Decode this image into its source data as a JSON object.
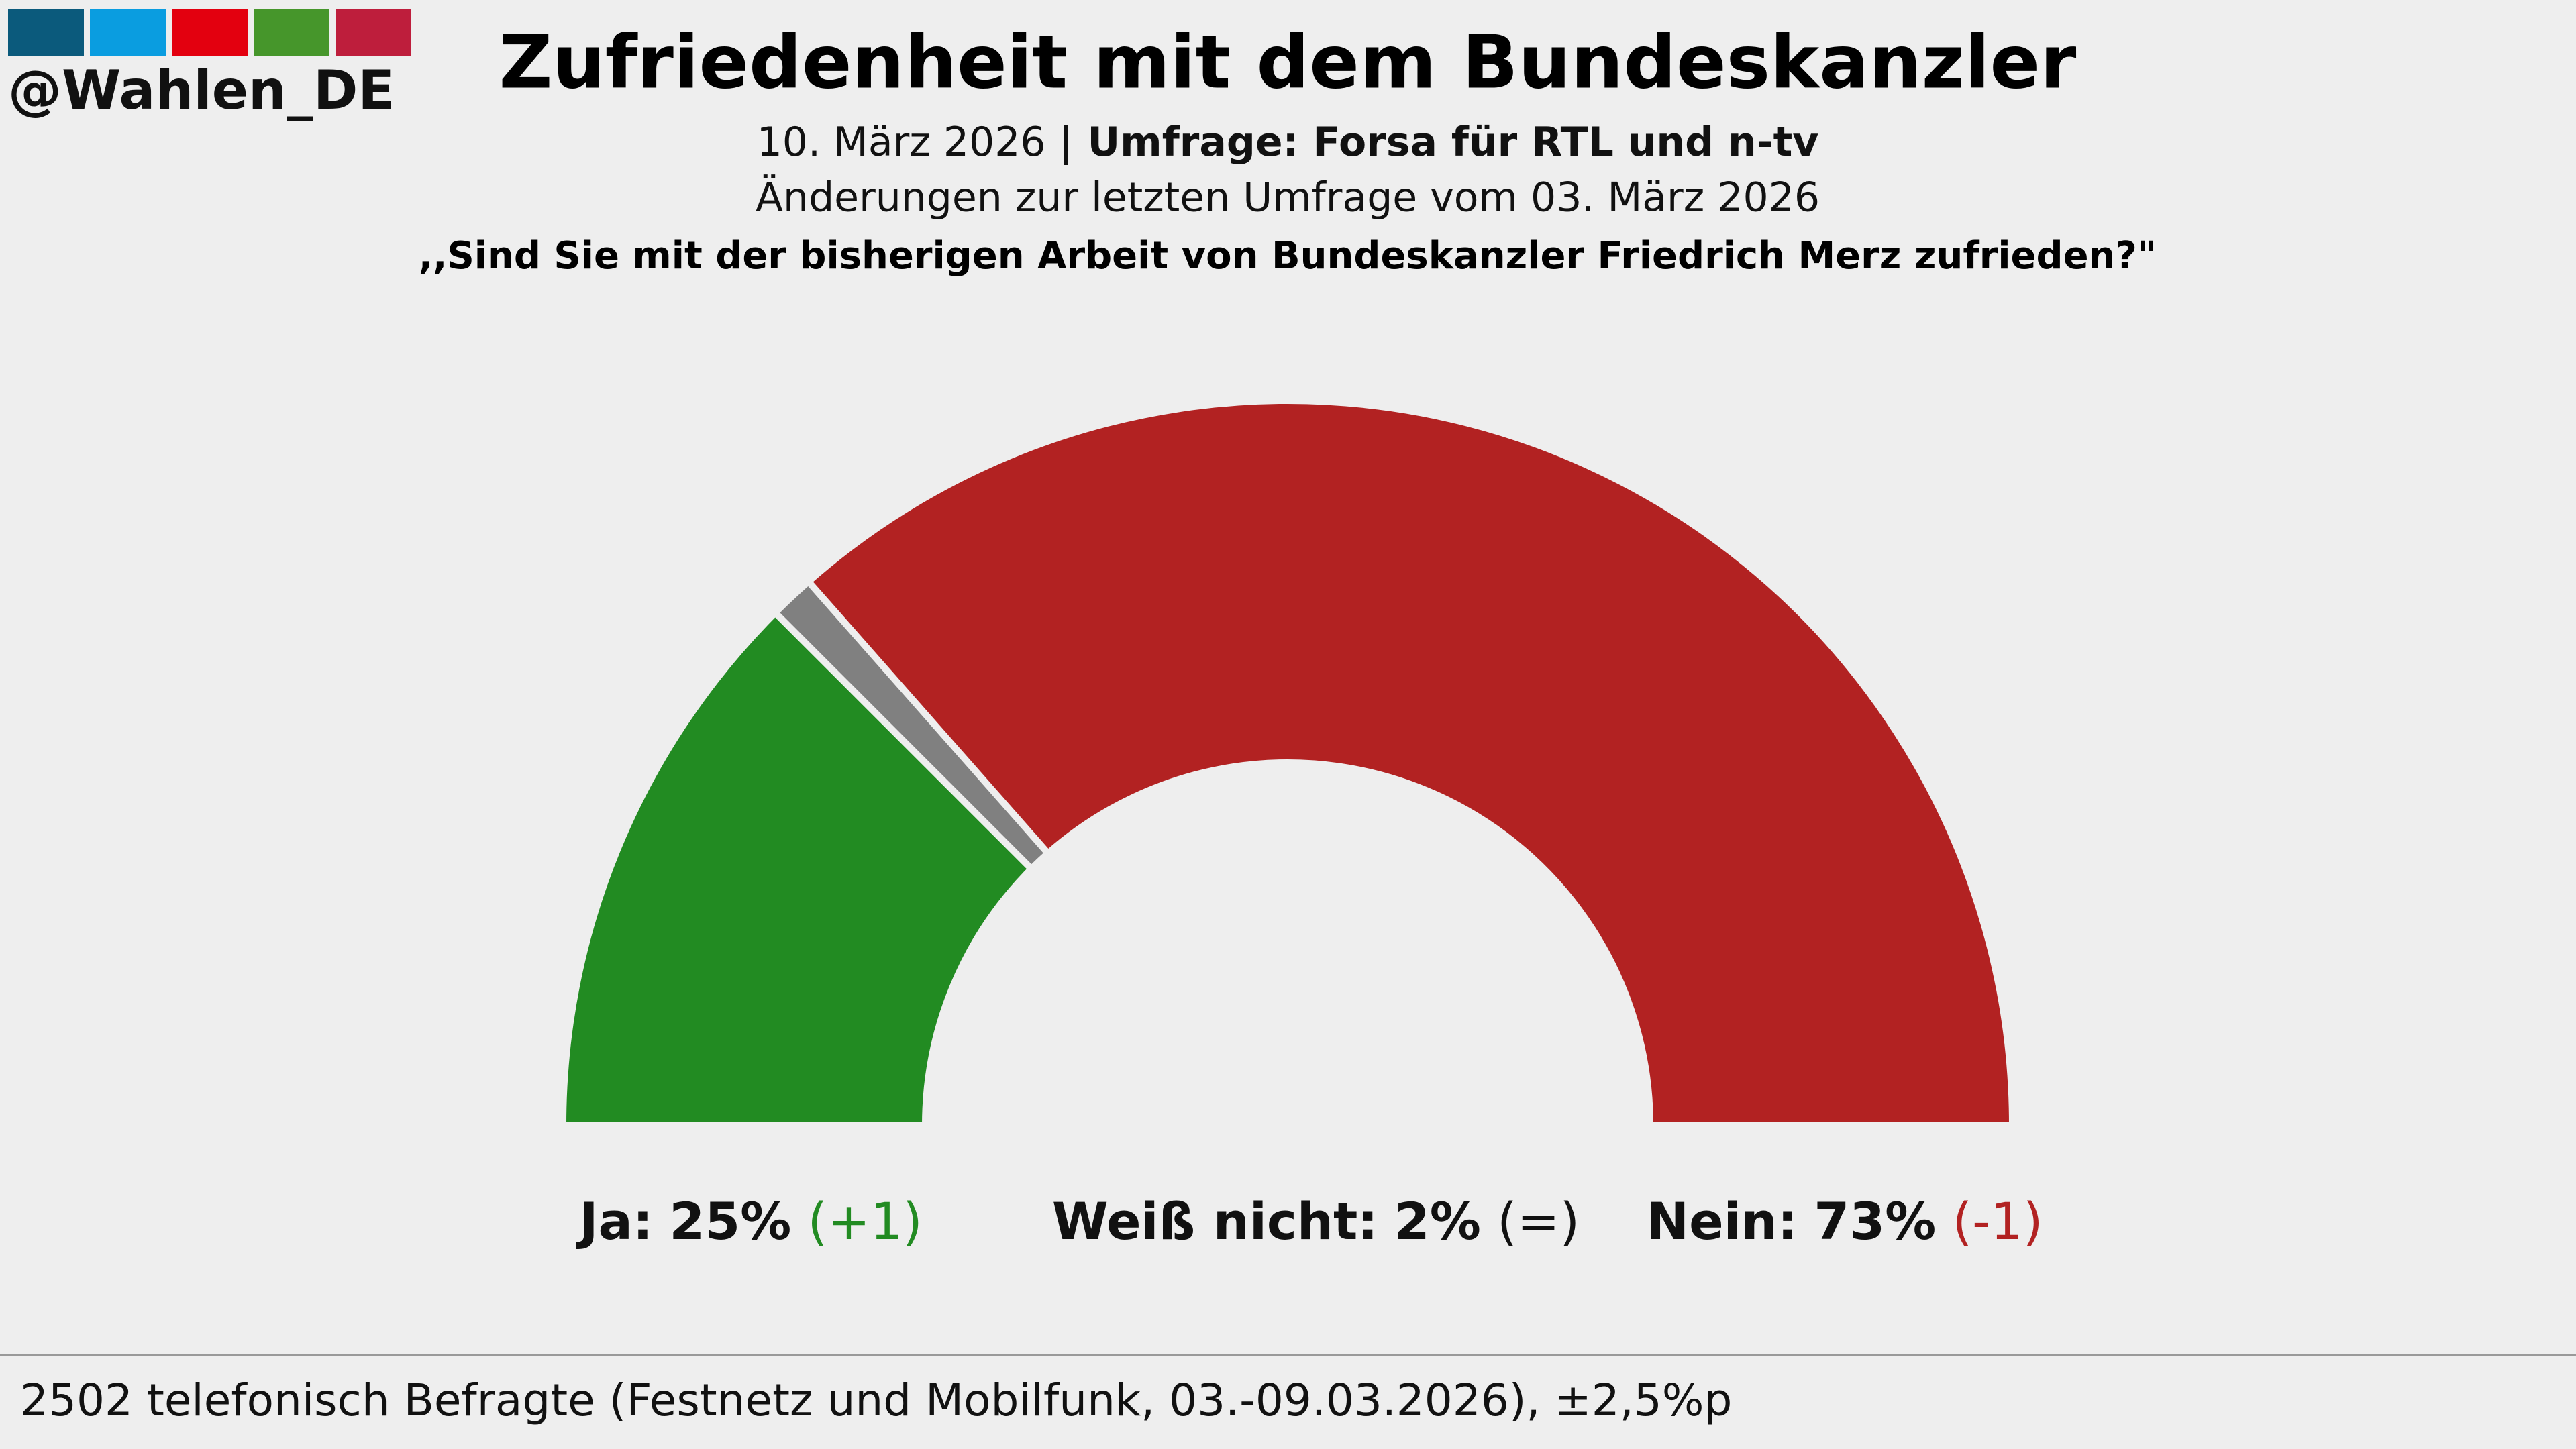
{
  "header": {
    "logo": "@Wahlen_DE"
  },
  "chart_data": {
    "type": "semicircle",
    "title": "Zufriedenheit mit dem Bundeskanzler",
    "subtitle_date": "10. März 2026",
    "subtitle_source": "| Umfrage: Forsa für RTL und n-tv",
    "subtitle_change": "Änderungen zur letzten Umfrage vom 03. März 2026",
    "question": ",,Sind Sie mit der bisherigen Arbeit von Bundeskanzler Friedrich Merz zufrieden?\"",
    "categories": [
      "Ja:",
      "Weiß nicht:",
      "Nein:"
    ],
    "values": [
      25,
      2,
      73
    ],
    "value_labels": [
      "25%",
      "2%",
      "73%"
    ],
    "colors": [
      "#228b22",
      "#808080",
      "#b22222"
    ],
    "changes": [
      "(+1)",
      "(=)",
      "(-1)"
    ],
    "change_colors": [
      "#228b22",
      "#111111",
      "#b22222"
    ]
  },
  "footer": {
    "note": "2502 telefonisch Befragte (Festnetz und Mobilfunk, 03.-09.03.2026), ±2,5%p"
  }
}
